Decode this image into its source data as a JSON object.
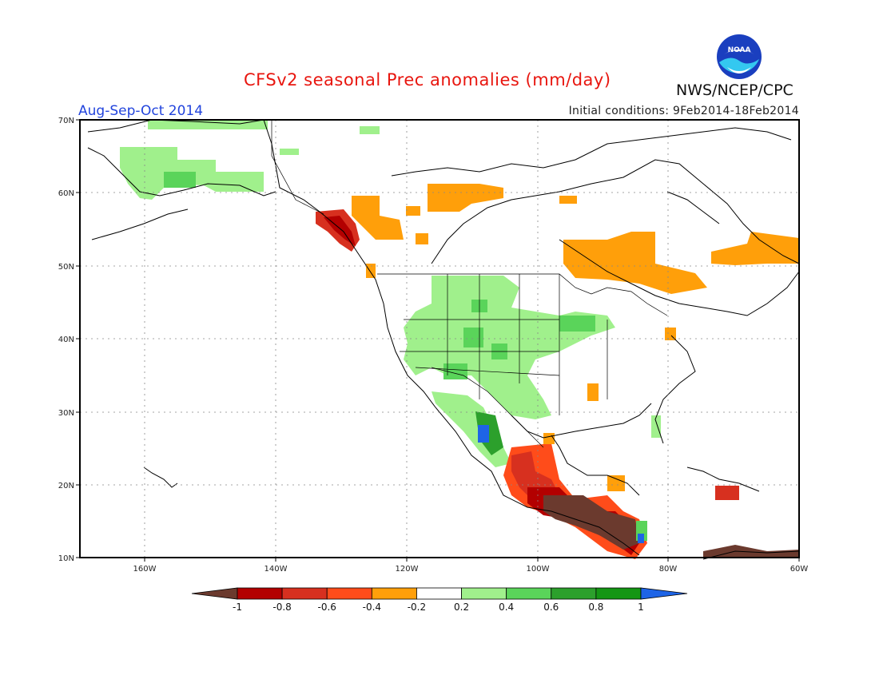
{
  "header": {
    "title": "CFSv2 seasonal Prec anomalies (mm/day)",
    "season": "Aug-Sep-Oct 2014",
    "initial_conditions": "Initial conditions: 9Feb2014-18Feb2014",
    "org": "NWS/NCEP/CPC",
    "logo_text": "NOAA"
  },
  "map": {
    "lat_labels": [
      "70N",
      "60N",
      "50N",
      "40N",
      "30N",
      "20N",
      "10N"
    ],
    "lon_labels": [
      "160W",
      "140W",
      "120W",
      "100W",
      "80W",
      "60W"
    ]
  },
  "colorbar": {
    "labels": [
      "-1",
      "-0.8",
      "-0.6",
      "-0.4",
      "-0.2",
      "0.2",
      "0.4",
      "0.6",
      "0.8",
      "1"
    ],
    "colors": [
      "#6b3a2e",
      "#b30000",
      "#d7301f",
      "#ff4c1a",
      "#ff9f0a",
      "#ffffff",
      "#a0f08c",
      "#5ad45a",
      "#2ca02c",
      "#149614",
      "#1e64e6"
    ]
  }
}
